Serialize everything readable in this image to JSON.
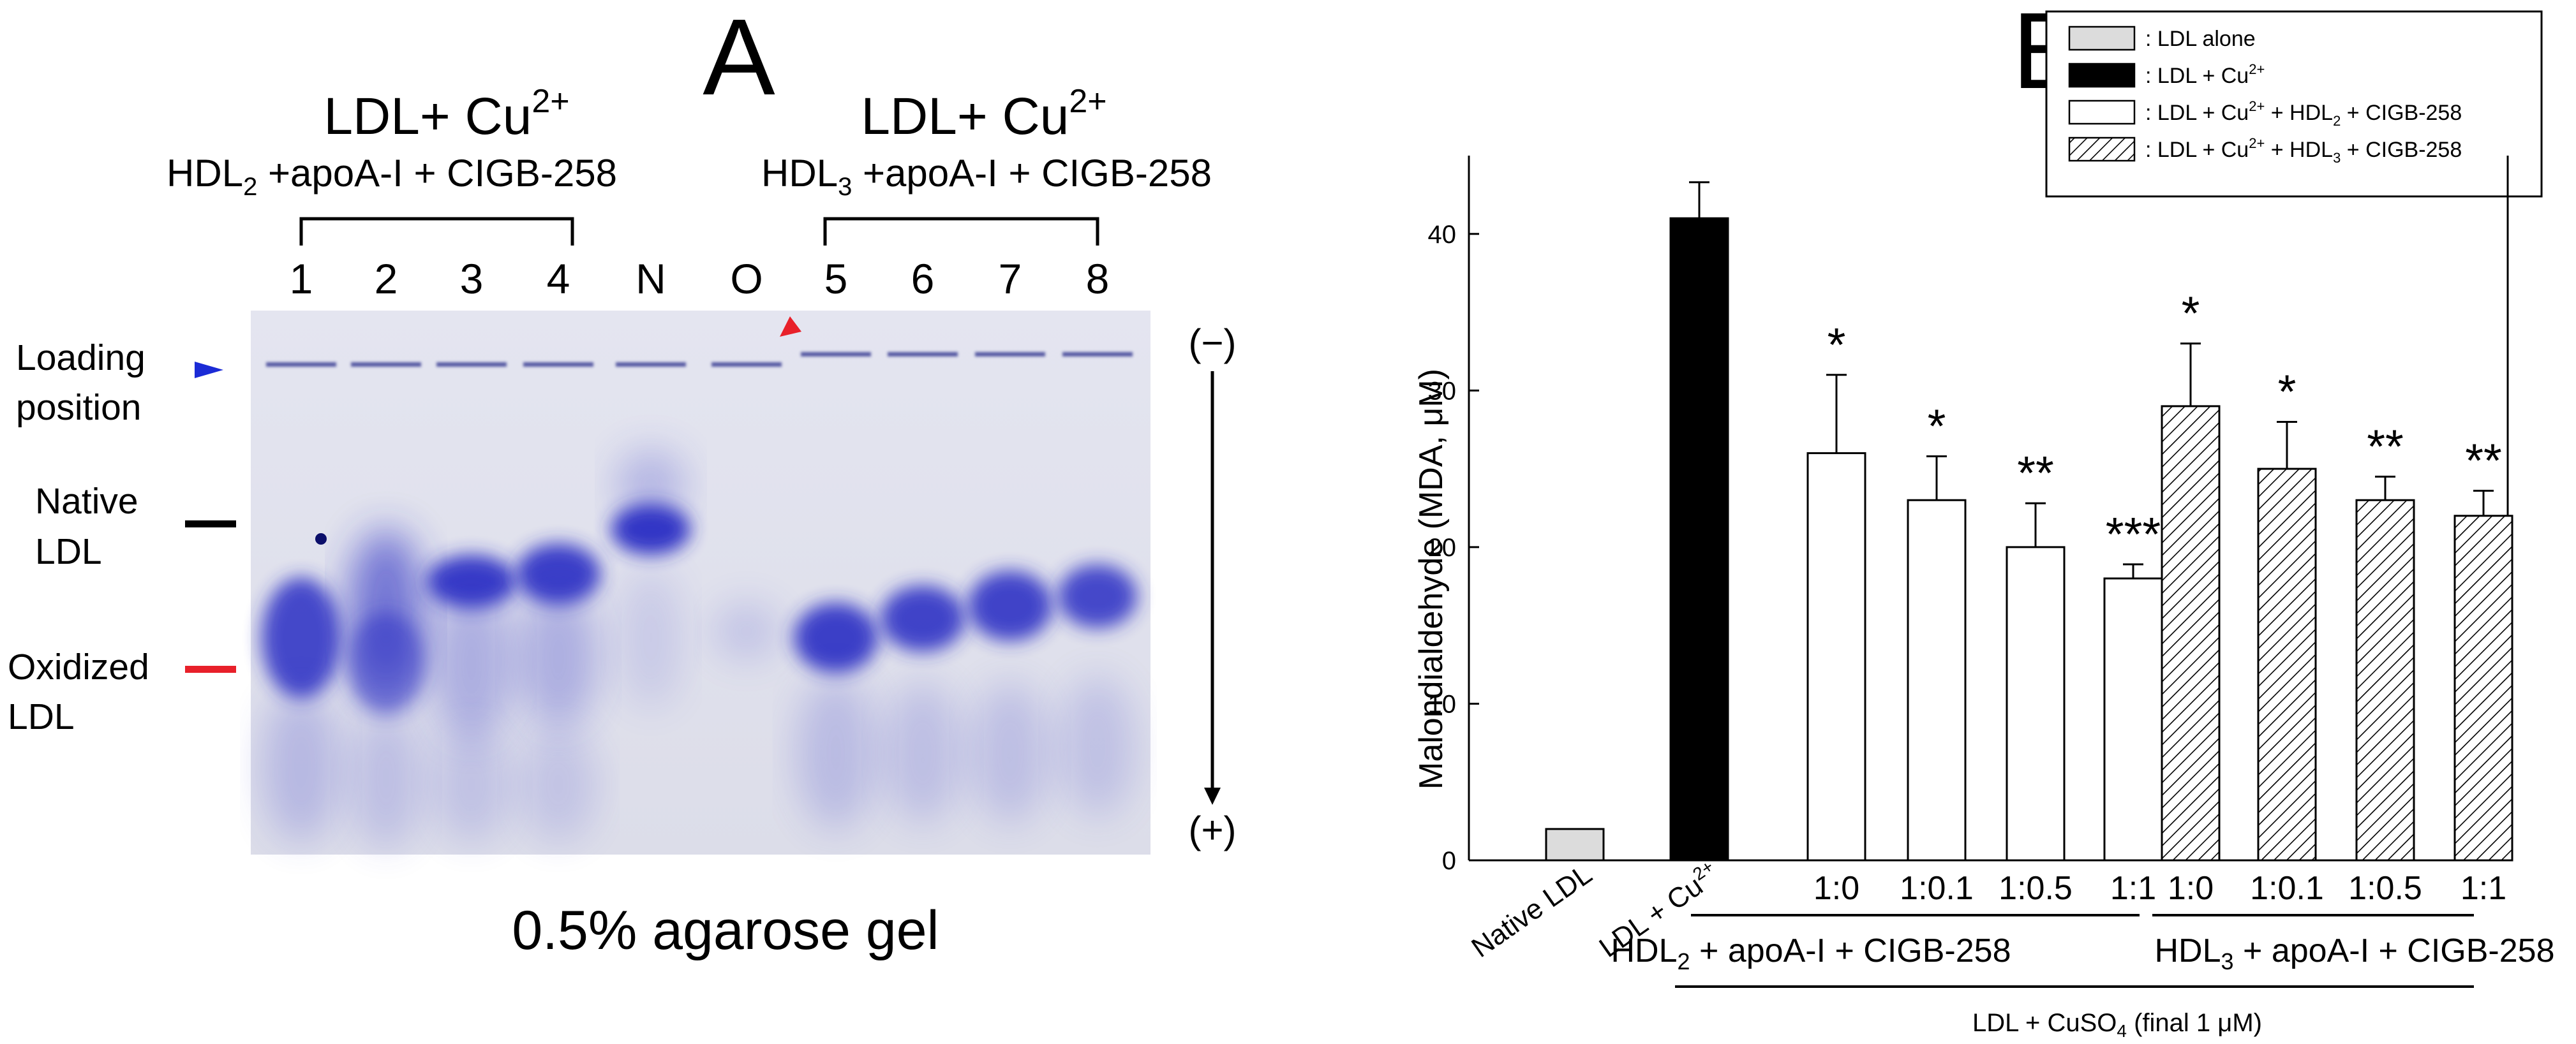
{
  "panel_a": {
    "letter": "A",
    "group1": {
      "title": "LDL+ Cu",
      "title_sup": "2+",
      "sub_pre": "HDL",
      "sub_idx": "2",
      "sub_rest": " +apoA-I + CIGB-258"
    },
    "group2": {
      "title": "LDL+ Cu",
      "title_sup": "2+",
      "sub_pre": "HDL",
      "sub_idx": "3",
      "sub_rest": " +apoA-I + CIGB-258"
    },
    "lanes": [
      "1",
      "2",
      "3",
      "4",
      "N",
      "O",
      "5",
      "6",
      "7",
      "8"
    ],
    "labels": {
      "loading1": "Loading",
      "loading2": "position",
      "native1": "Native",
      "native2": "LDL",
      "oxidized1": "Oxidized",
      "oxidized2": "LDL",
      "minus": "(−)",
      "plus": "(+)"
    },
    "caption": "0.5% agarose gel",
    "colors": {
      "gel_bg": "#e3e4ef",
      "stain": "#2a2fc4",
      "blue_arrow": "#1b2bd6",
      "red_marker": "#e8202a",
      "black_marker": "#000000"
    }
  },
  "chart_data": {
    "type": "bar",
    "title": "B",
    "ylabel": "Malondialdehyde (MDA, μM)",
    "ylim": [
      0,
      45
    ],
    "yticks": [
      0,
      10,
      20,
      30,
      40
    ],
    "categories": [
      "Native LDL",
      "LDL + Cu2+",
      "1:0",
      "1:0.1",
      "1:0.5",
      "1:1",
      "1:0",
      "1:0.1",
      "1:0.5",
      "1:1"
    ],
    "x_tick_labels": {
      "native": "Native LDL",
      "cu_pre": "LDL + Cu",
      "cu_sup": "2+",
      "ratios": [
        "1:0",
        "1:0.1",
        "1:0.5",
        "1:1",
        "1:0",
        "1:0.1",
        "1:0.5",
        "1:1"
      ]
    },
    "values": [
      2,
      41,
      26,
      23,
      20,
      18,
      29,
      25,
      23,
      22
    ],
    "errors": [
      0,
      2.3,
      5.0,
      2.8,
      2.8,
      0.9,
      4.0,
      3.0,
      1.5,
      1.6
    ],
    "fills": [
      "gray",
      "black",
      "white",
      "white",
      "white",
      "white",
      "hatch",
      "hatch",
      "hatch",
      "hatch"
    ],
    "significance": [
      "",
      "",
      "*",
      "*",
      "**",
      "***",
      "*",
      "*",
      "**",
      "**"
    ],
    "group_labels": {
      "g1": {
        "pre": "HDL",
        "idx": "2",
        "rest": " + apoA-I + CIGB-258"
      },
      "g2": {
        "pre": "HDL",
        "idx": "3",
        "rest": " + apoA-I + CIGB-258"
      },
      "bottom": {
        "pre": "LDL + CuSO",
        "idx": "4",
        "rest": " (final 1 μM)"
      }
    },
    "legend": {
      "position": "top-right",
      "entries": [
        {
          "fill": "gray",
          "t1": ": LDL alone",
          "sup": "",
          "t2": "",
          "idx": "",
          "t3": ""
        },
        {
          "fill": "black",
          "t1": ": LDL + Cu",
          "sup": "2+",
          "t2": "",
          "idx": "",
          "t3": ""
        },
        {
          "fill": "white",
          "t1": ": LDL + Cu",
          "sup": "2+",
          "t2": " + HDL",
          "idx": "2",
          "t3": " + CIGB-258"
        },
        {
          "fill": "hatch",
          "t1": ": LDL + Cu",
          "sup": "2+",
          "t2": " + HDL",
          "idx": "3",
          "t3": " + CIGB-258"
        }
      ]
    },
    "colors": {
      "gray": "#dcdcdc",
      "black": "#000000",
      "white": "#ffffff",
      "stroke": "#000000"
    }
  }
}
